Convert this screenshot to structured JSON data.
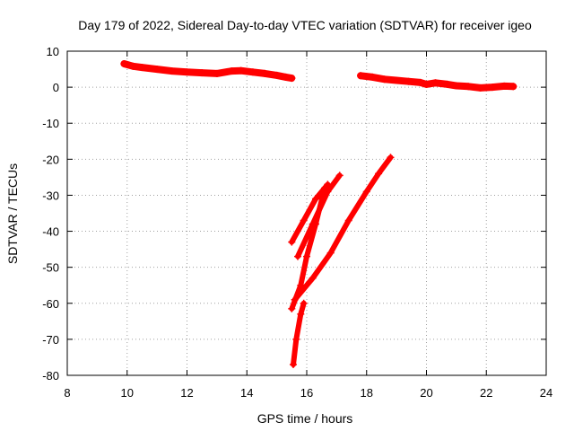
{
  "chart_data": {
    "type": "scatter",
    "title": "Day 179 of 2022, Sidereal Day-to-day VTEC variation (SDTVAR) for receiver igeo",
    "xlabel": "GPS time / hours",
    "ylabel": "SDTVAR / TECUs",
    "xlim": [
      8,
      24
    ],
    "ylim": [
      -80,
      10
    ],
    "xticks": [
      8,
      10,
      12,
      14,
      16,
      18,
      20,
      22,
      24
    ],
    "yticks": [
      10,
      0,
      -10,
      -20,
      -30,
      -40,
      -50,
      -60,
      -70,
      -80
    ],
    "grid": true,
    "marker": "+",
    "color": "#ff0000",
    "series": [
      {
        "name": "arc-1",
        "x": [
          9.9,
          10.2,
          10.5,
          11.0,
          11.5,
          12.0,
          12.5,
          13.0,
          13.5,
          13.8,
          14.2,
          14.6,
          15.0,
          15.3,
          15.5
        ],
        "y": [
          6.5,
          5.8,
          5.5,
          5.0,
          4.5,
          4.2,
          4.0,
          3.8,
          4.5,
          4.6,
          4.2,
          3.8,
          3.3,
          2.8,
          2.5
        ]
      },
      {
        "name": "arc-2",
        "x": [
          17.8,
          18.2,
          18.6,
          19.0,
          19.4,
          19.8,
          20.0,
          20.3,
          20.7,
          21.0,
          21.4,
          21.8,
          22.2,
          22.6,
          22.9
        ],
        "y": [
          3.2,
          2.8,
          2.2,
          1.9,
          1.6,
          1.3,
          0.8,
          1.2,
          0.8,
          0.4,
          0.2,
          -0.2,
          0.0,
          0.3,
          0.2
        ]
      },
      {
        "name": "arc-3",
        "x": [
          15.5,
          15.9,
          16.3,
          16.7
        ],
        "y": [
          -43,
          -37,
          -31,
          -27
        ]
      },
      {
        "name": "arc-4",
        "x": [
          15.7,
          16.2,
          16.7,
          17.1
        ],
        "y": [
          -47,
          -38,
          -29,
          -24.5
        ]
      },
      {
        "name": "arc-5",
        "x": [
          15.5,
          15.8,
          16.0,
          16.3,
          16.6
        ],
        "y": [
          -61.5,
          -55,
          -47,
          -38,
          -28
        ]
      },
      {
        "name": "arc-6",
        "x": [
          15.6,
          16.2,
          16.8,
          17.4,
          18.0,
          18.4,
          18.8
        ],
        "y": [
          -59,
          -53,
          -46,
          -37,
          -29,
          -24,
          -19.5
        ]
      },
      {
        "name": "arc-7",
        "x": [
          15.55,
          15.65,
          15.8,
          15.9
        ],
        "y": [
          -77,
          -70,
          -63,
          -60
        ]
      }
    ]
  }
}
